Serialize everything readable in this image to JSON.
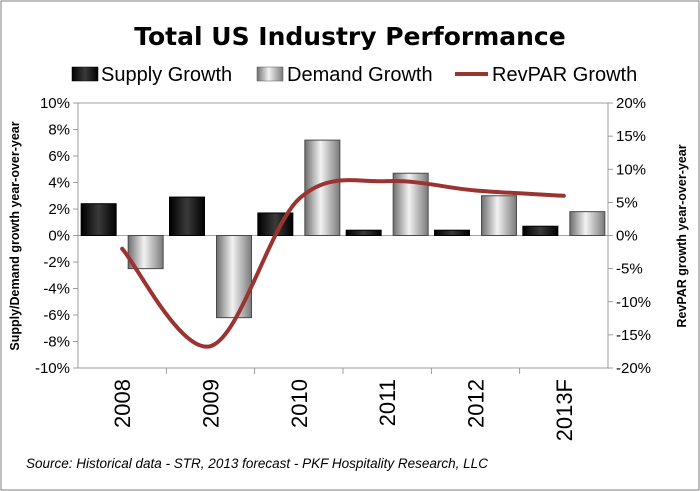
{
  "chart_data": {
    "type": "bar",
    "title": "Total US Industry Performance",
    "categories": [
      "2008",
      "2009",
      "2010",
      "2011",
      "2012",
      "2013F"
    ],
    "series": [
      {
        "name": "Supply Growth",
        "type": "bar",
        "axis": "left",
        "values": [
          2.4,
          2.9,
          1.7,
          0.4,
          0.4,
          0.7
        ]
      },
      {
        "name": "Demand Growth",
        "type": "bar",
        "axis": "left",
        "values": [
          -2.5,
          -6.2,
          7.2,
          4.7,
          3.0,
          1.8
        ]
      },
      {
        "name": "RevPAR Growth",
        "type": "line",
        "axis": "right",
        "values": [
          -2.0,
          -16.7,
          5.5,
          8.2,
          6.8,
          6.0
        ]
      }
    ],
    "ylabel_left": "Supply/Demand growth year-over-year",
    "ylabel_right": "RevPAR growth year-over-year",
    "ylim_left": [
      -10,
      10
    ],
    "ylim_right": [
      -20,
      20
    ],
    "yticks_left": [
      "10%",
      "8%",
      "6%",
      "4%",
      "2%",
      "0%",
      "-2%",
      "-4%",
      "-6%",
      "-8%",
      "-10%"
    ],
    "yticks_right": [
      "20%",
      "15%",
      "10%",
      "5%",
      "0%",
      "-5%",
      "-10%",
      "-15%",
      "-20%"
    ],
    "legend_position": "top",
    "colors": {
      "supply": "#0a0a0a",
      "demand": "#b4b4b4",
      "revpar": "#9b3330"
    },
    "source": "Source:  Historical data - STR, 2013 forecast - PKF Hospitality Research, LLC"
  }
}
